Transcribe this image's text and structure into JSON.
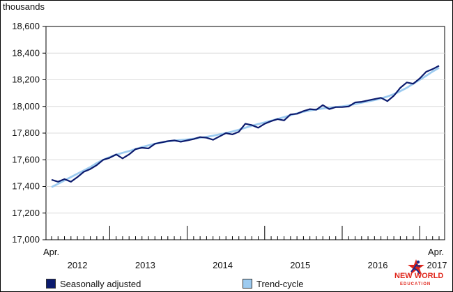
{
  "chart_data": {
    "type": "line",
    "ylabel": "thousands",
    "ylim": [
      17000,
      18600
    ],
    "yticks": [
      17000,
      17200,
      17400,
      17600,
      17800,
      18000,
      18200,
      18400,
      18600
    ],
    "ytick_labels": [
      "17,000",
      "17,200",
      "17,400",
      "17,600",
      "17,800",
      "18,000",
      "18,200",
      "18,400",
      "18,600"
    ],
    "x_start_label": "Apr.",
    "x_end_label": "Apr.",
    "year_labels": [
      "2012",
      "2013",
      "2014",
      "2015",
      "2016",
      "2017"
    ],
    "grid": true,
    "legend_position": "bottom",
    "x": [
      "2012-04",
      "2012-05",
      "2012-06",
      "2012-07",
      "2012-08",
      "2012-09",
      "2012-10",
      "2012-11",
      "2012-12",
      "2013-01",
      "2013-02",
      "2013-03",
      "2013-04",
      "2013-05",
      "2013-06",
      "2013-07",
      "2013-08",
      "2013-09",
      "2013-10",
      "2013-11",
      "2013-12",
      "2014-01",
      "2014-02",
      "2014-03",
      "2014-04",
      "2014-05",
      "2014-06",
      "2014-07",
      "2014-08",
      "2014-09",
      "2014-10",
      "2014-11",
      "2014-12",
      "2015-01",
      "2015-02",
      "2015-03",
      "2015-04",
      "2015-05",
      "2015-06",
      "2015-07",
      "2015-08",
      "2015-09",
      "2015-10",
      "2015-11",
      "2015-12",
      "2016-01",
      "2016-02",
      "2016-03",
      "2016-04",
      "2016-05",
      "2016-06",
      "2016-07",
      "2016-08",
      "2016-09",
      "2016-10",
      "2016-11",
      "2016-12",
      "2017-01",
      "2017-02",
      "2017-03",
      "2017-04"
    ],
    "series": [
      {
        "name": "Seasonally adjusted",
        "color": "#0c1b6e",
        "values": [
          17450,
          17435,
          17455,
          17435,
          17470,
          17510,
          17530,
          17560,
          17600,
          17615,
          17640,
          17610,
          17640,
          17680,
          17690,
          17685,
          17720,
          17730,
          17740,
          17745,
          17735,
          17745,
          17755,
          17770,
          17765,
          17750,
          17775,
          17800,
          17790,
          17810,
          17870,
          17860,
          17840,
          17870,
          17890,
          17905,
          17895,
          17940,
          17945,
          17965,
          17980,
          17975,
          18010,
          17980,
          17995,
          17995,
          18000,
          18030,
          18035,
          18045,
          18055,
          18065,
          18040,
          18080,
          18140,
          18180,
          18170,
          18210,
          18260,
          18280,
          18305
        ]
      },
      {
        "name": "Trend-cycle",
        "color": "#9dcbf0",
        "values": [
          17395,
          17420,
          17445,
          17470,
          17495,
          17520,
          17545,
          17575,
          17600,
          17620,
          17638,
          17652,
          17665,
          17680,
          17695,
          17708,
          17720,
          17730,
          17738,
          17744,
          17748,
          17752,
          17758,
          17765,
          17772,
          17780,
          17790,
          17800,
          17812,
          17825,
          17840,
          17855,
          17868,
          17880,
          17893,
          17906,
          17920,
          17934,
          17948,
          17960,
          17970,
          17978,
          17985,
          17990,
          17995,
          18000,
          18008,
          18018,
          18028,
          18038,
          18048,
          18060,
          18075,
          18092,
          18115,
          18140,
          18170,
          18200,
          18230,
          18262,
          18290
        ]
      }
    ]
  },
  "logo": {
    "line1": "NEW WORLD",
    "line2": "EDUCATION"
  }
}
